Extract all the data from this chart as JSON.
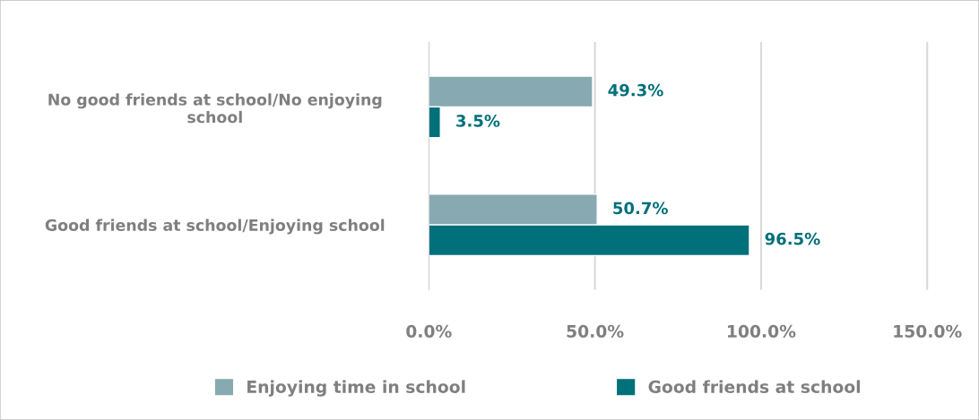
{
  "chart_data": {
    "type": "bar",
    "orientation": "horizontal",
    "categories": [
      "No good friends at school/No enjoying\nschool",
      "Good friends at school/Enjoying school"
    ],
    "series": [
      {
        "name": "Enjoying time in school",
        "color": "#87aab2",
        "values": [
          49.3,
          50.7
        ],
        "value_labels": [
          "49.3%",
          "50.7%"
        ]
      },
      {
        "name": "Good friends at school",
        "color": "#00707a",
        "values": [
          3.5,
          96.5
        ],
        "value_labels": [
          "3.5%",
          "96.5%"
        ]
      }
    ],
    "xlim": [
      0,
      165
    ],
    "xticks": [
      {
        "value": 0,
        "label": "0.0%"
      },
      {
        "value": 50,
        "label": "50.0%"
      },
      {
        "value": 100,
        "label": "100.0%"
      },
      {
        "value": 150,
        "label": "150.0%"
      }
    ],
    "grid": "x",
    "legend": "bottom"
  }
}
